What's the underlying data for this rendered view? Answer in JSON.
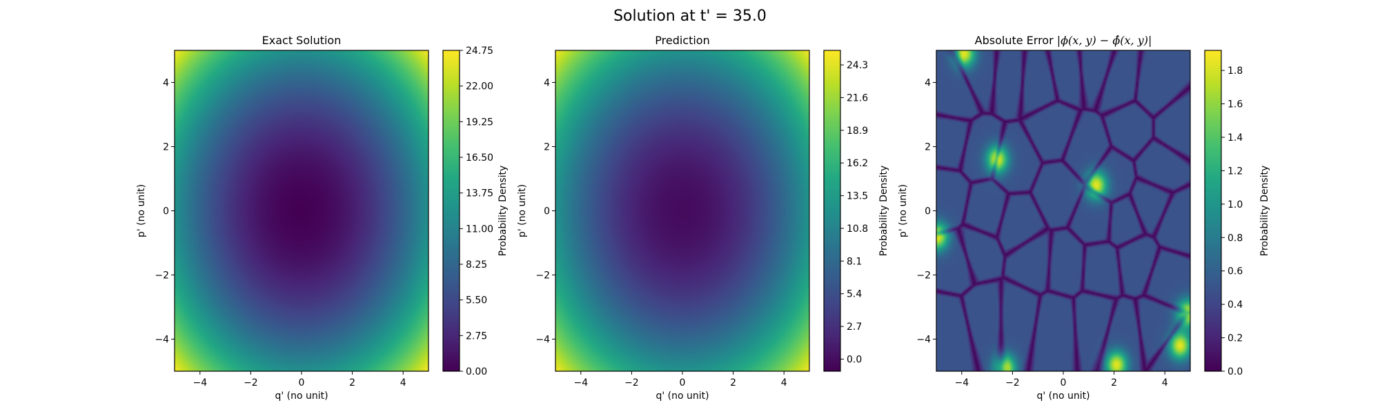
{
  "figure": {
    "title": "Solution at t' = 35.0"
  },
  "chart_data": [
    {
      "type": "heatmap",
      "title": "Exact Solution",
      "xlabel": "q' (no unit)",
      "ylabel": "p' (no unit)",
      "xlim": [
        -5,
        5
      ],
      "ylim": [
        -5,
        5
      ],
      "xticks": [
        "−4",
        "−2",
        "0",
        "2",
        "4"
      ],
      "yticks": [
        "−4",
        "−2",
        "0",
        "2",
        "4"
      ],
      "colormap": "viridis",
      "field": "quadratic bowl, minimum at (0, 0), maximum at corners",
      "colorbar": {
        "label": "Probability Density",
        "range": [
          0,
          24.75
        ],
        "ticks": [
          "0.00",
          "2.75",
          "5.50",
          "8.25",
          "11.00",
          "13.75",
          "16.50",
          "19.25",
          "22.00",
          "24.75"
        ],
        "tick_values": [
          0,
          2.75,
          5.5,
          8.25,
          11,
          13.75,
          16.5,
          19.25,
          22,
          24.75
        ]
      }
    },
    {
      "type": "heatmap",
      "title": "Prediction",
      "xlabel": "q' (no unit)",
      "ylabel": "p' (no unit)",
      "xlim": [
        -5,
        5
      ],
      "ylim": [
        -5,
        5
      ],
      "xticks": [
        "−4",
        "−2",
        "0",
        "2",
        "4"
      ],
      "yticks": [
        "−4",
        "−2",
        "0",
        "2",
        "4"
      ],
      "colormap": "viridis",
      "field": "quadratic bowl, minimum at (0, 0), maximum at corners",
      "colorbar": {
        "label": "Probability Density",
        "range": [
          -1.0,
          25.5
        ],
        "ticks": [
          "0.0",
          "2.7",
          "5.4",
          "8.1",
          "10.8",
          "13.5",
          "16.2",
          "18.9",
          "21.6",
          "24.3"
        ],
        "tick_values": [
          0,
          2.7,
          5.4,
          8.1,
          10.8,
          13.5,
          16.2,
          18.9,
          21.6,
          24.3
        ]
      }
    },
    {
      "type": "heatmap",
      "title_prefix": "Absolute Error ",
      "title_formula": "|ϕ(x, y) − ϕ̂(x, y)|",
      "xlabel": "q' (no unit)",
      "ylabel": "p' (no unit)",
      "xlim": [
        -5,
        5
      ],
      "ylim": [
        -5,
        5
      ],
      "xticks": [
        "−4",
        "−2",
        "0",
        "2",
        "4"
      ],
      "yticks": [
        "−4",
        "−2",
        "0",
        "2",
        "4"
      ],
      "colormap": "viridis",
      "field": "irregular cellular blobs around 0.5, thin dark rims near 0, bright streaks near edges up to about 1.9",
      "colorbar": {
        "label": "Probability Density",
        "range": [
          0,
          1.92
        ],
        "ticks": [
          "0.0",
          "0.2",
          "0.4",
          "0.6",
          "0.8",
          "1.0",
          "1.2",
          "1.4",
          "1.6",
          "1.8"
        ],
        "tick_values": [
          0,
          0.2,
          0.4,
          0.6,
          0.8,
          1.0,
          1.2,
          1.4,
          1.6,
          1.8
        ]
      }
    }
  ]
}
